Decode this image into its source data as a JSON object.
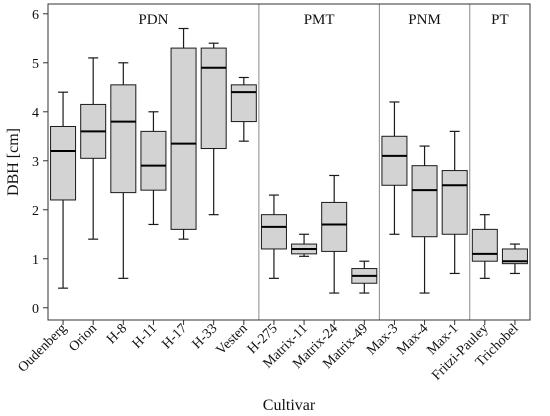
{
  "chart_data": {
    "type": "boxplot",
    "xlabel": "Cultivar",
    "ylabel": "DBH [cm]",
    "ylim": [
      -0.25,
      6.2
    ],
    "yticks": [
      0,
      1,
      2,
      3,
      4,
      5,
      6
    ],
    "grid": false,
    "box_fill": "#d3d3d3",
    "groups": [
      {
        "name": "PDN",
        "categories": [
          "Oudenberg",
          "Orion",
          "H-8",
          "H-11",
          "H-17",
          "H-33",
          "Vesten"
        ]
      },
      {
        "name": "PMT",
        "categories": [
          "H-275",
          "Matrix-11",
          "Matrix-24",
          "Matrix-49"
        ]
      },
      {
        "name": "PNM",
        "categories": [
          "Max-3",
          "Max-4",
          "Max-1"
        ]
      },
      {
        "name": "PT",
        "categories": [
          "Fritzi-Pauley",
          "Trichobel"
        ]
      }
    ],
    "boxes": [
      {
        "category": "Oudenberg",
        "min": 0.4,
        "q1": 2.2,
        "median": 3.2,
        "q3": 3.7,
        "max": 4.4
      },
      {
        "category": "Orion",
        "min": 1.4,
        "q1": 3.05,
        "median": 3.6,
        "q3": 4.15,
        "max": 5.1
      },
      {
        "category": "H-8",
        "min": 0.6,
        "q1": 2.35,
        "median": 3.8,
        "q3": 4.55,
        "max": 5.0
      },
      {
        "category": "H-11",
        "min": 1.7,
        "q1": 2.4,
        "median": 2.9,
        "q3": 3.6,
        "max": 4.0
      },
      {
        "category": "H-17",
        "min": 1.4,
        "q1": 1.6,
        "median": 3.35,
        "q3": 5.3,
        "max": 5.7
      },
      {
        "category": "H-33",
        "min": 1.9,
        "q1": 3.25,
        "median": 4.9,
        "q3": 5.3,
        "max": 5.4
      },
      {
        "category": "Vesten",
        "min": 3.4,
        "q1": 3.8,
        "median": 4.4,
        "q3": 4.55,
        "max": 4.7
      },
      {
        "category": "H-275",
        "min": 0.6,
        "q1": 1.2,
        "median": 1.65,
        "q3": 1.9,
        "max": 2.3
      },
      {
        "category": "Matrix-11",
        "min": 1.05,
        "q1": 1.1,
        "median": 1.2,
        "q3": 1.3,
        "max": 1.5
      },
      {
        "category": "Matrix-24",
        "min": 0.3,
        "q1": 1.15,
        "median": 1.7,
        "q3": 2.15,
        "max": 2.7
      },
      {
        "category": "Matrix-49",
        "min": 0.3,
        "q1": 0.5,
        "median": 0.65,
        "q3": 0.8,
        "max": 0.95
      },
      {
        "category": "Max-3",
        "min": 1.5,
        "q1": 2.5,
        "median": 3.1,
        "q3": 3.5,
        "max": 4.2
      },
      {
        "category": "Max-4",
        "min": 0.3,
        "q1": 1.45,
        "median": 2.4,
        "q3": 2.9,
        "max": 3.3
      },
      {
        "category": "Max-1",
        "min": 0.7,
        "q1": 1.5,
        "median": 2.5,
        "q3": 2.8,
        "max": 3.6
      },
      {
        "category": "Fritzi-Pauley",
        "min": 0.6,
        "q1": 0.95,
        "median": 1.1,
        "q3": 1.6,
        "max": 1.9
      },
      {
        "category": "Trichobel",
        "min": 0.7,
        "q1": 0.9,
        "median": 0.95,
        "q3": 1.2,
        "max": 1.3
      }
    ]
  }
}
